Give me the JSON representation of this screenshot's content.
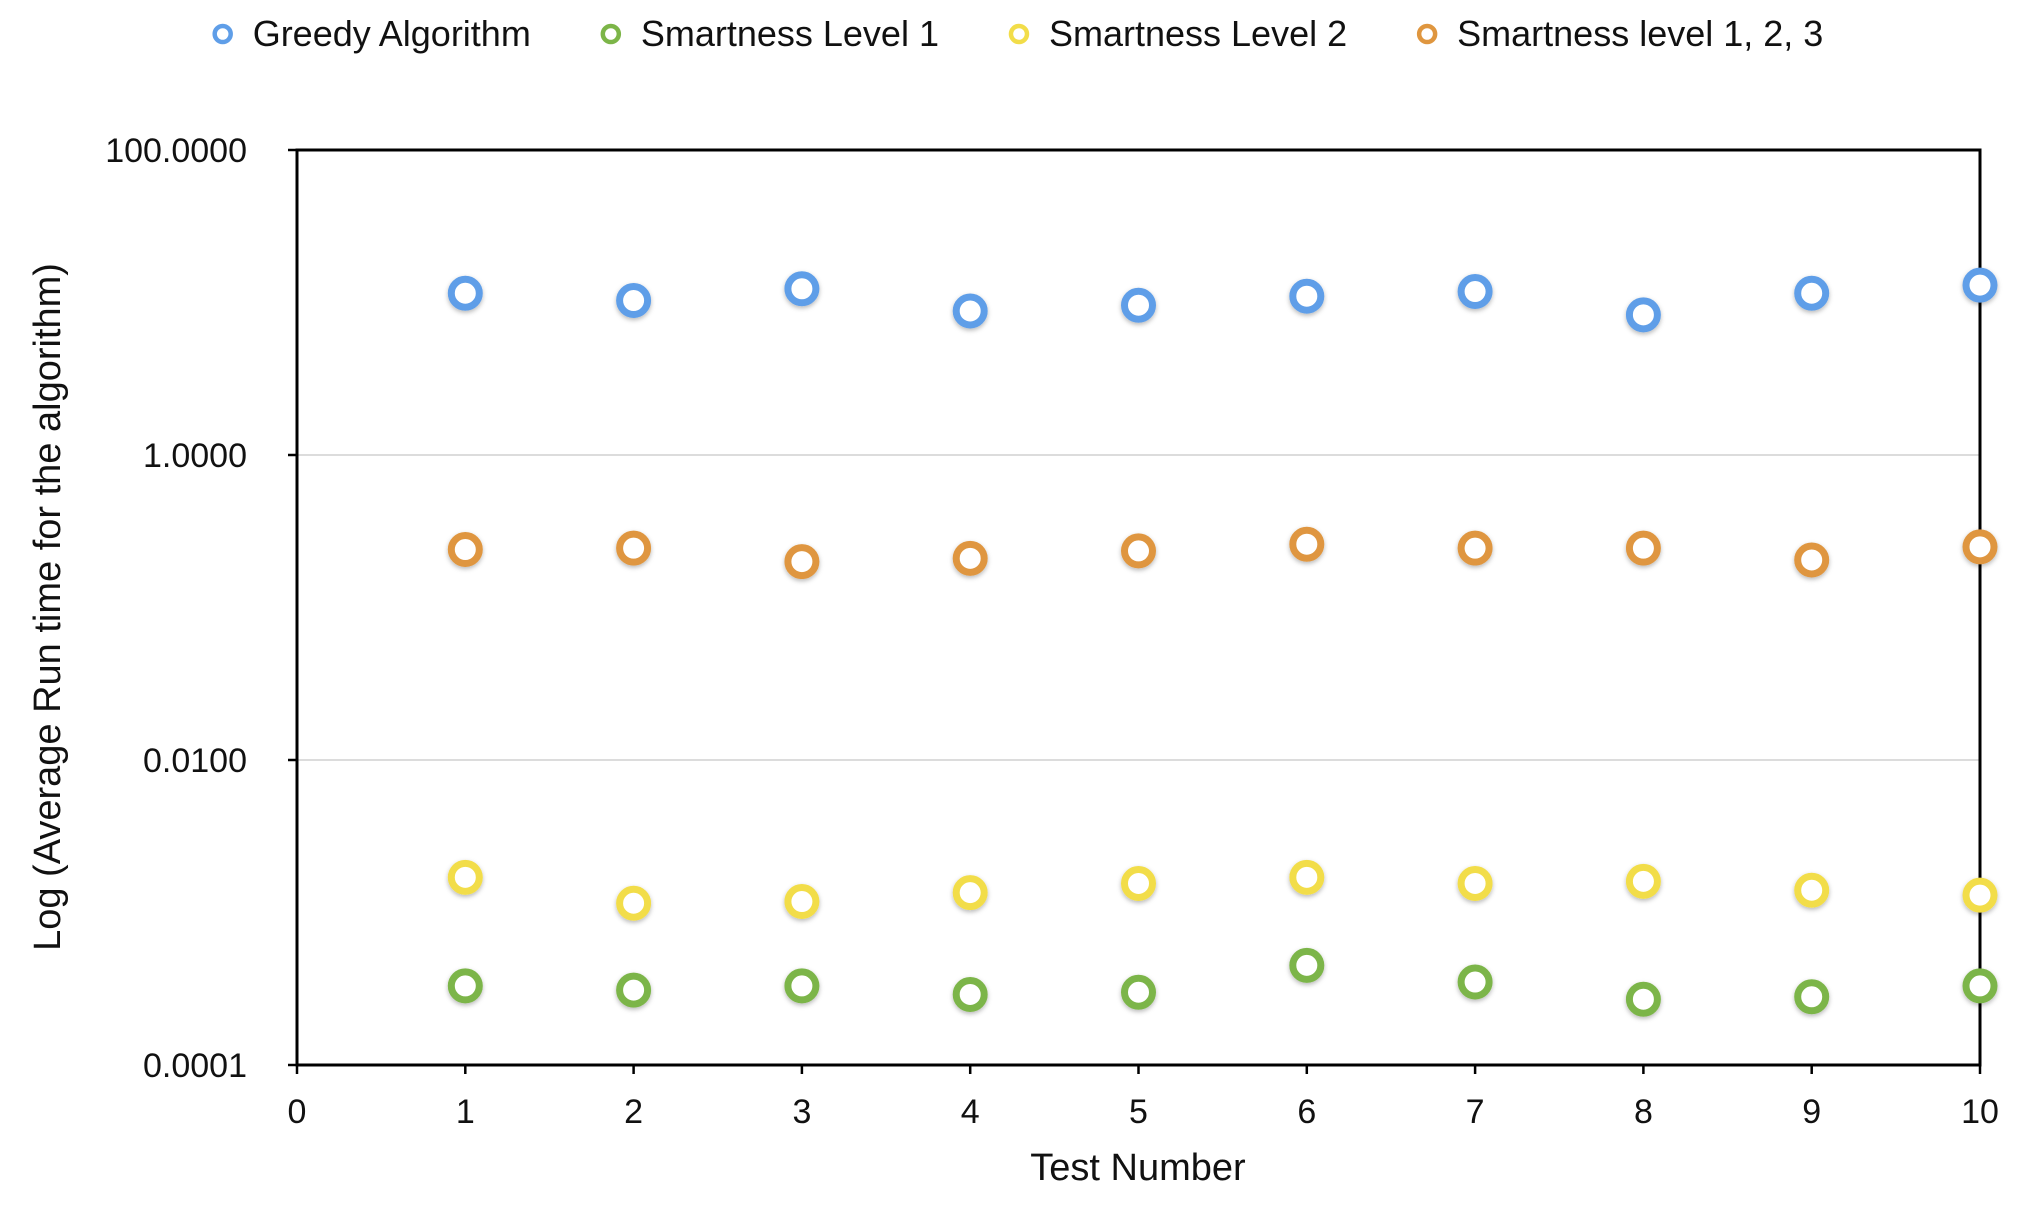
{
  "chart_data": {
    "type": "scatter",
    "title": "",
    "xlabel": "Test Number",
    "ylabel": "Log (Average Run time for the algorithm)",
    "xlim": [
      0,
      10
    ],
    "ylim": [
      0.0001,
      100
    ],
    "y_scale": "log",
    "x_ticks": [
      "0",
      "1",
      "2",
      "3",
      "4",
      "5",
      "6",
      "7",
      "8",
      "9",
      "10"
    ],
    "y_ticks": [
      {
        "value": 100,
        "label": "100.0000"
      },
      {
        "value": 1,
        "label": "1.0000"
      },
      {
        "value": 0.01,
        "label": "0.0100"
      },
      {
        "value": 0.0001,
        "label": "0.0001"
      }
    ],
    "grid": "horizontal",
    "legend_position": "top",
    "x": [
      1,
      2,
      3,
      4,
      5,
      6,
      7,
      8,
      9,
      10
    ],
    "series": [
      {
        "name": "Greedy Algorithm",
        "color": "#5f9ee8",
        "values": [
          11.5,
          10.3,
          12.3,
          8.8,
          9.6,
          11.0,
          11.8,
          8.3,
          11.5,
          13.0
        ]
      },
      {
        "name": "Smartness Level 1",
        "color": "#7cb548",
        "values": [
          0.00033,
          0.00031,
          0.00033,
          0.00029,
          0.0003,
          0.00045,
          0.00035,
          0.00027,
          0.00028,
          0.00033
        ]
      },
      {
        "name": "Smartness Level 2",
        "color": "#f2dd49",
        "values": [
          0.0017,
          0.00115,
          0.00118,
          0.00135,
          0.00155,
          0.0017,
          0.00155,
          0.0016,
          0.0014,
          0.0013
        ]
      },
      {
        "name": "Smartness level 1, 2, 3",
        "color": "#df963f",
        "values": [
          0.24,
          0.245,
          0.2,
          0.21,
          0.235,
          0.26,
          0.245,
          0.245,
          0.205,
          0.25
        ]
      }
    ]
  }
}
